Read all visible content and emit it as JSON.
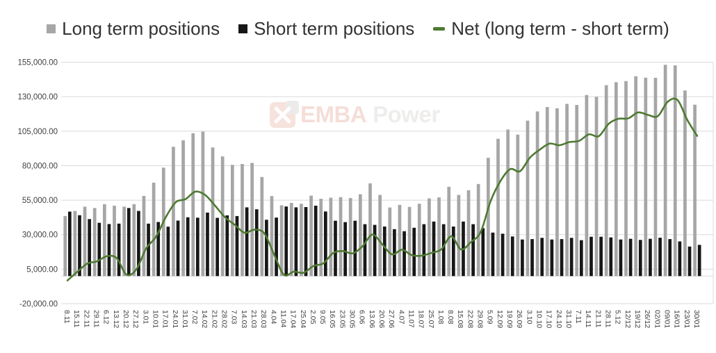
{
  "legend": {
    "items": [
      {
        "label": "Long term positions"
      },
      {
        "label": "Short term positions"
      },
      {
        "label": "Net (long term - short term)"
      }
    ]
  },
  "watermark": {
    "brand": "EMBA",
    "brand2": "Power"
  },
  "chart_data": {
    "type": "bar",
    "subtype": "combo-bar-line",
    "title": "",
    "xlabel": "",
    "ylabel": "",
    "ylim": [
      -20000,
      155000
    ],
    "ytick_step": 25000,
    "grid": "horizontal",
    "legend_position": "top",
    "colors": {
      "grid": "#d9d9d9",
      "tick_text": "#404040",
      "background": "#ffffff"
    },
    "yticks": [
      {
        "value": 155000,
        "label": "155,000.00"
      },
      {
        "value": 130000,
        "label": "130,000.00"
      },
      {
        "value": 105000,
        "label": "105,000.00"
      },
      {
        "value": 80000,
        "label": "80,000.00"
      },
      {
        "value": 55000,
        "label": "55,000.00"
      },
      {
        "value": 30000,
        "label": "30,000.00"
      },
      {
        "value": 5000,
        "label": "5,000.00"
      },
      {
        "value": -20000,
        "label": "-20,000.00"
      }
    ],
    "categories": [
      "8.11",
      "15.11",
      "22.11",
      "29.11",
      "6.12",
      "13.12",
      "20.12",
      "27.12",
      "3.01",
      "10.01",
      "17.01",
      "24.01",
      "31.01",
      "7.02",
      "14.02",
      "21.02",
      "28.02",
      "7.03",
      "14.03",
      "21.03",
      "28.03",
      "4.04",
      "11.04",
      "17.04",
      "25.04",
      "2.05",
      "9.05",
      "16.05",
      "23.05",
      "30.05",
      "6.06",
      "13.06",
      "20.06",
      "27.06",
      "4.07",
      "11.07",
      "18.07",
      "25.07",
      "1.08",
      "8.08",
      "15.08",
      "22.08",
      "29.08",
      "5.09",
      "12.09",
      "19.09",
      "26.09",
      "3.10",
      "10.10",
      "17.10",
      "24.10",
      "31.10",
      "7.11",
      "14.11",
      "21.11",
      "28.11",
      "5.12",
      "12/12",
      "19/12",
      "26/12",
      "02/01",
      "09/01",
      "16/01",
      "23/01",
      "30/01"
    ],
    "series": [
      {
        "name": "Long term positions",
        "type": "bar",
        "color": "#a6a6a6",
        "values": [
          43500,
          47200,
          50300,
          49300,
          52100,
          51000,
          50300,
          52100,
          58100,
          67700,
          78600,
          93700,
          98400,
          103500,
          104700,
          93200,
          86700,
          80600,
          81200,
          82000,
          71800,
          58000,
          51300,
          53000,
          52400,
          58300,
          56000,
          56800,
          57200,
          56600,
          59300,
          67200,
          58800,
          49700,
          51600,
          50100,
          52400,
          56300,
          57000,
          64700,
          58800,
          62200,
          66700,
          85700,
          99500,
          106200,
          102500,
          112600,
          119300,
          122500,
          121600,
          124800,
          124000,
          131200,
          129900,
          138300,
          140500,
          141300,
          144800,
          143800,
          143700,
          153100,
          152700,
          134500,
          124200
        ]
      },
      {
        "name": "Short term positions",
        "type": "bar",
        "color": "#171717",
        "values": [
          46700,
          44100,
          41300,
          38600,
          37700,
          38000,
          49300,
          47200,
          38000,
          39200,
          35800,
          40200,
          42600,
          42300,
          46000,
          42200,
          44000,
          43500,
          49800,
          48400,
          40800,
          42400,
          50400,
          49800,
          50000,
          51000,
          46800,
          40100,
          39100,
          40100,
          37600,
          37100,
          35900,
          34000,
          32500,
          35000,
          37600,
          39500,
          37600,
          35900,
          39500,
          37600,
          34700,
          31500,
          30700,
          28700,
          26500,
          26800,
          27700,
          26500,
          26800,
          27700,
          26000,
          28500,
          28500,
          28000,
          26500,
          27000,
          26200,
          27000,
          27800,
          26800,
          25100,
          21400,
          22600
        ]
      },
      {
        "name": "Net (long term - short term)",
        "type": "line",
        "color": "#4e7a31",
        "values": [
          -3200,
          3100,
          9000,
          10700,
          14400,
          13000,
          1000,
          4900,
          20100,
          28500,
          42800,
          53500,
          55800,
          61200,
          58700,
          51000,
          42700,
          37100,
          31400,
          33600,
          31000,
          15600,
          900,
          3200,
          2400,
          7300,
          9200,
          16700,
          18100,
          16500,
          21700,
          30100,
          22900,
          15700,
          19100,
          15100,
          14800,
          16800,
          19400,
          28800,
          19300,
          24600,
          32000,
          54200,
          68800,
          77500,
          76000,
          85800,
          91600,
          96000,
          94800,
          97100,
          98000,
          102700,
          101400,
          110300,
          114000,
          114300,
          118600,
          116800,
          115900,
          126300,
          127600,
          113100,
          101600
        ]
      }
    ]
  }
}
